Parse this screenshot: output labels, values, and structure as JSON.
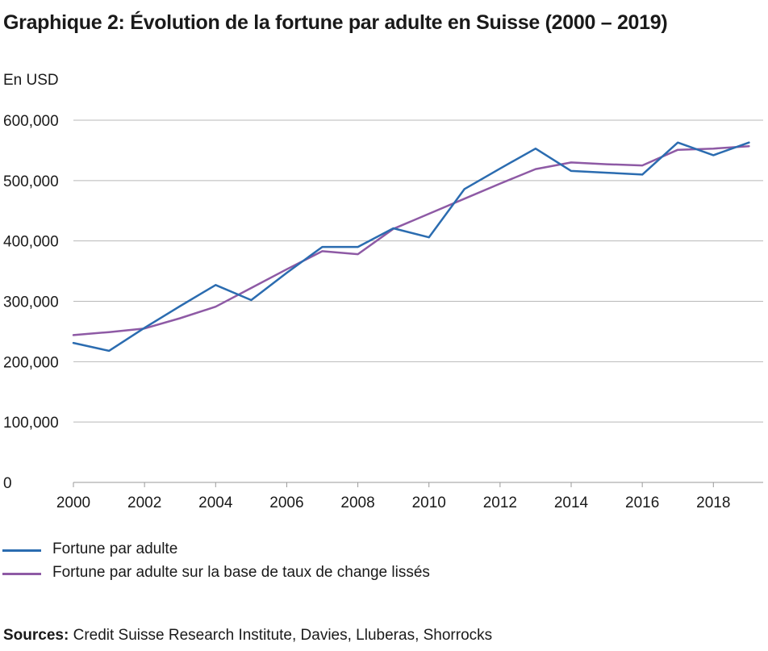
{
  "chart_data": {
    "type": "line",
    "title": "Graphique 2: Évolution de la fortune par adulte en Suisse (2000 – 2019)",
    "ylabel": "En USD",
    "xlabel": "",
    "x": [
      2000,
      2001,
      2002,
      2003,
      2004,
      2005,
      2006,
      2007,
      2008,
      2009,
      2010,
      2011,
      2012,
      2013,
      2014,
      2015,
      2016,
      2017,
      2018,
      2019
    ],
    "x_ticks": [
      2000,
      2002,
      2004,
      2006,
      2008,
      2010,
      2012,
      2014,
      2016,
      2018
    ],
    "x_tick_labels": [
      "2000",
      "2002",
      "2004",
      "2006",
      "2008",
      "2010",
      "2012",
      "2014",
      "2016",
      "2018"
    ],
    "xlim": [
      2000,
      2019.4
    ],
    "ylim": [
      0,
      600000
    ],
    "y_ticks": [
      0,
      100000,
      200000,
      300000,
      400000,
      500000,
      600000
    ],
    "y_tick_labels": [
      "0",
      "100,000",
      "200,000",
      "300,000",
      "400,000",
      "500,000",
      "600,000"
    ],
    "grid": true,
    "legend_position": "bottom-left",
    "series": [
      {
        "name": "Fortune par adulte",
        "color": "#2b6cb0",
        "values": [
          231000,
          218000,
          256000,
          292000,
          327000,
          302000,
          347000,
          390000,
          390000,
          421000,
          406000,
          486000,
          520000,
          553000,
          516000,
          513000,
          510000,
          563000,
          542000,
          563000
        ]
      },
      {
        "name": "Fortune par adulte sur la base de taux de change lissés",
        "color": "#8e5aa5",
        "values": [
          244000,
          249000,
          255000,
          272000,
          291000,
          322000,
          353000,
          383000,
          378000,
          420000,
          445000,
          470000,
          495000,
          519000,
          530000,
          527000,
          525000,
          551000,
          553000,
          557000
        ]
      }
    ]
  },
  "sources": {
    "label": "Sources:",
    "text": " Credit Suisse Research Institute, Davies, Lluberas, Shorrocks"
  }
}
